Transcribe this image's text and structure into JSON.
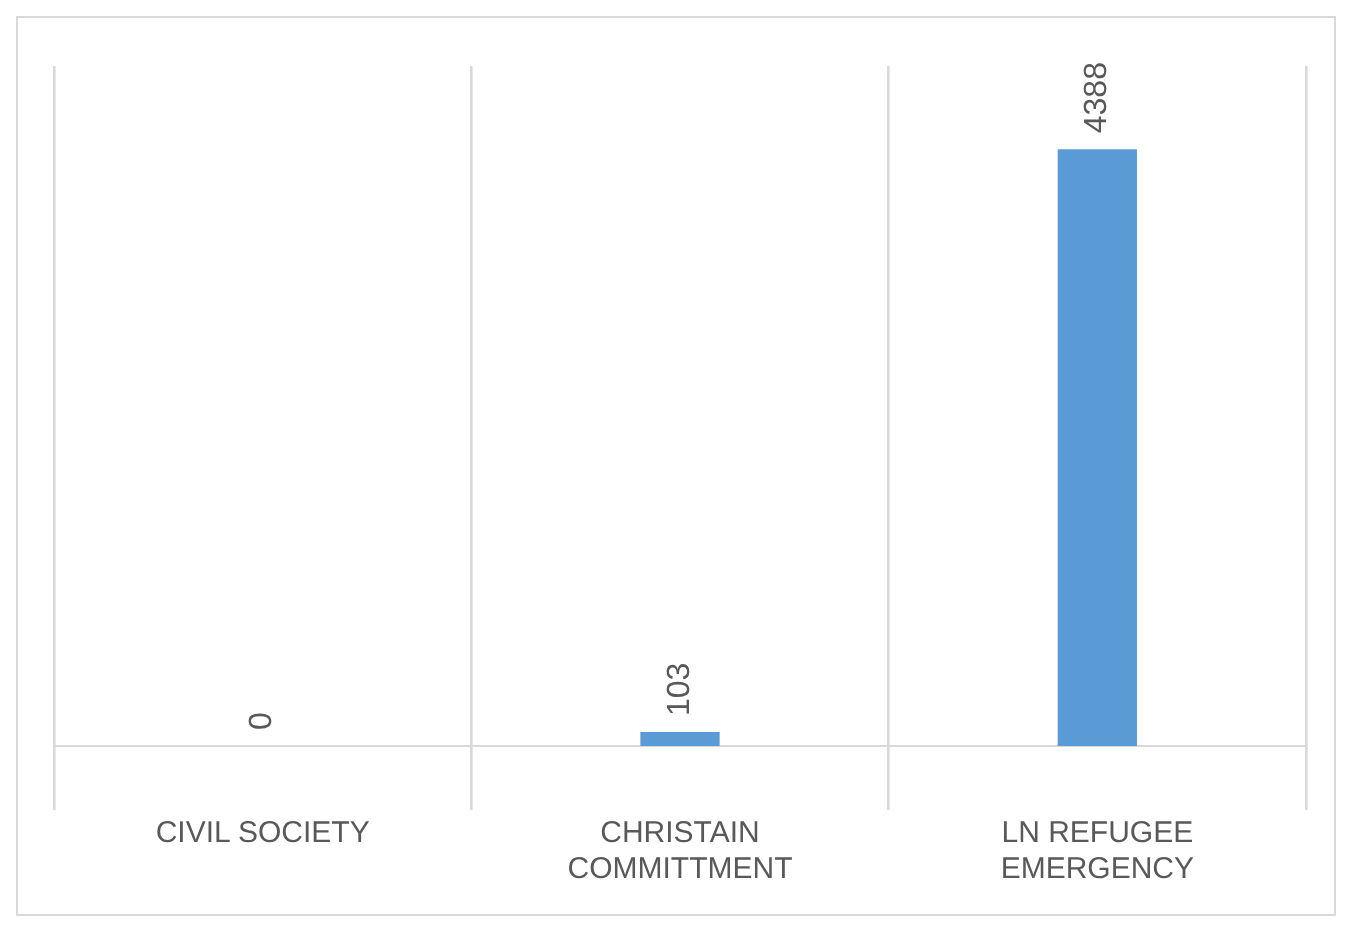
{
  "chart_data": {
    "type": "bar",
    "categories": [
      "CIVIL SOCIETY",
      "CHRISTAIN COMMITTMENT",
      "LN REFUGEE EMERGENCY"
    ],
    "values": [
      0,
      103,
      4388
    ],
    "color": "#5b9bd5",
    "data_labels": true,
    "grid": "x",
    "legend": false
  }
}
